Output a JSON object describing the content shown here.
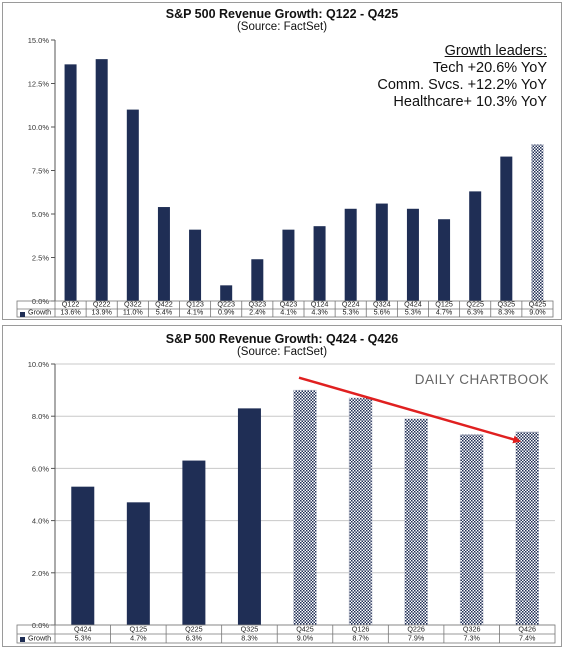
{
  "colors": {
    "solid": "#1f2e55",
    "hatch": "#1f2e55",
    "arrow": "#e02020",
    "grid": "#c8c8c8"
  },
  "watermark": "DAILY CHARTBOOK",
  "annotation": {
    "heading": "Growth leaders:",
    "lines": [
      "Tech +20.6% YoY",
      "Comm. Svcs. +12.2% YoY",
      "Healthcare+ 10.3% YoY"
    ]
  },
  "chart_data": [
    {
      "type": "bar",
      "title": "S&P 500 Revenue Growth: Q122 - Q425",
      "subtitle": "(Source: FactSet)",
      "categories": [
        "Q122",
        "Q222",
        "Q322",
        "Q422",
        "Q123",
        "Q223",
        "Q323",
        "Q423",
        "Q124",
        "Q224",
        "Q324",
        "Q424",
        "Q125",
        "Q225",
        "Q325",
        "Q425"
      ],
      "series": [
        {
          "name": "Growth",
          "values": [
            13.6,
            13.9,
            11.0,
            5.4,
            4.1,
            0.9,
            2.4,
            4.1,
            4.3,
            5.3,
            5.6,
            5.3,
            4.7,
            6.3,
            8.3,
            9.0
          ]
        }
      ],
      "value_labels": [
        "13.6%",
        "13.9%",
        "11.0%",
        "5.4%",
        "4.1%",
        "0.9%",
        "2.4%",
        "4.1%",
        "4.3%",
        "5.3%",
        "5.6%",
        "5.3%",
        "4.7%",
        "6.3%",
        "8.3%",
        "9.0%"
      ],
      "estimate_start_index": 15,
      "ylim": [
        0,
        15
      ],
      "yticks": [
        0,
        2.5,
        5,
        7.5,
        10,
        12.5,
        15
      ],
      "ytick_labels": [
        "0.0%",
        "2.5%",
        "5.0%",
        "7.5%",
        "10.0%",
        "12.5%",
        "15.0%"
      ],
      "grid": false,
      "legend": "data-table-row"
    },
    {
      "type": "bar",
      "title": "S&P 500 Revenue Growth: Q424 - Q426",
      "subtitle": "(Source: FactSet)",
      "categories": [
        "Q424",
        "Q125",
        "Q225",
        "Q325",
        "Q425",
        "Q126",
        "Q226",
        "Q326",
        "Q426"
      ],
      "series": [
        {
          "name": "Growth",
          "values": [
            5.3,
            4.7,
            6.3,
            8.3,
            9.0,
            8.7,
            7.9,
            7.3,
            7.4
          ]
        }
      ],
      "value_labels": [
        "5.3%",
        "4.7%",
        "6.3%",
        "8.3%",
        "9.0%",
        "8.7%",
        "7.9%",
        "7.3%",
        "7.4%"
      ],
      "estimate_start_index": 4,
      "ylim": [
        0,
        10
      ],
      "yticks": [
        0,
        2,
        4,
        6,
        8,
        10
      ],
      "ytick_labels": [
        "0.0%",
        "2.0%",
        "4.0%",
        "6.0%",
        "8.0%",
        "10.0%"
      ],
      "grid": true,
      "legend": "data-table-row",
      "trend_arrow": {
        "from_value": 9.4,
        "to_value": 7.2,
        "from_category": "Q425",
        "to_category": "Q426"
      }
    }
  ]
}
